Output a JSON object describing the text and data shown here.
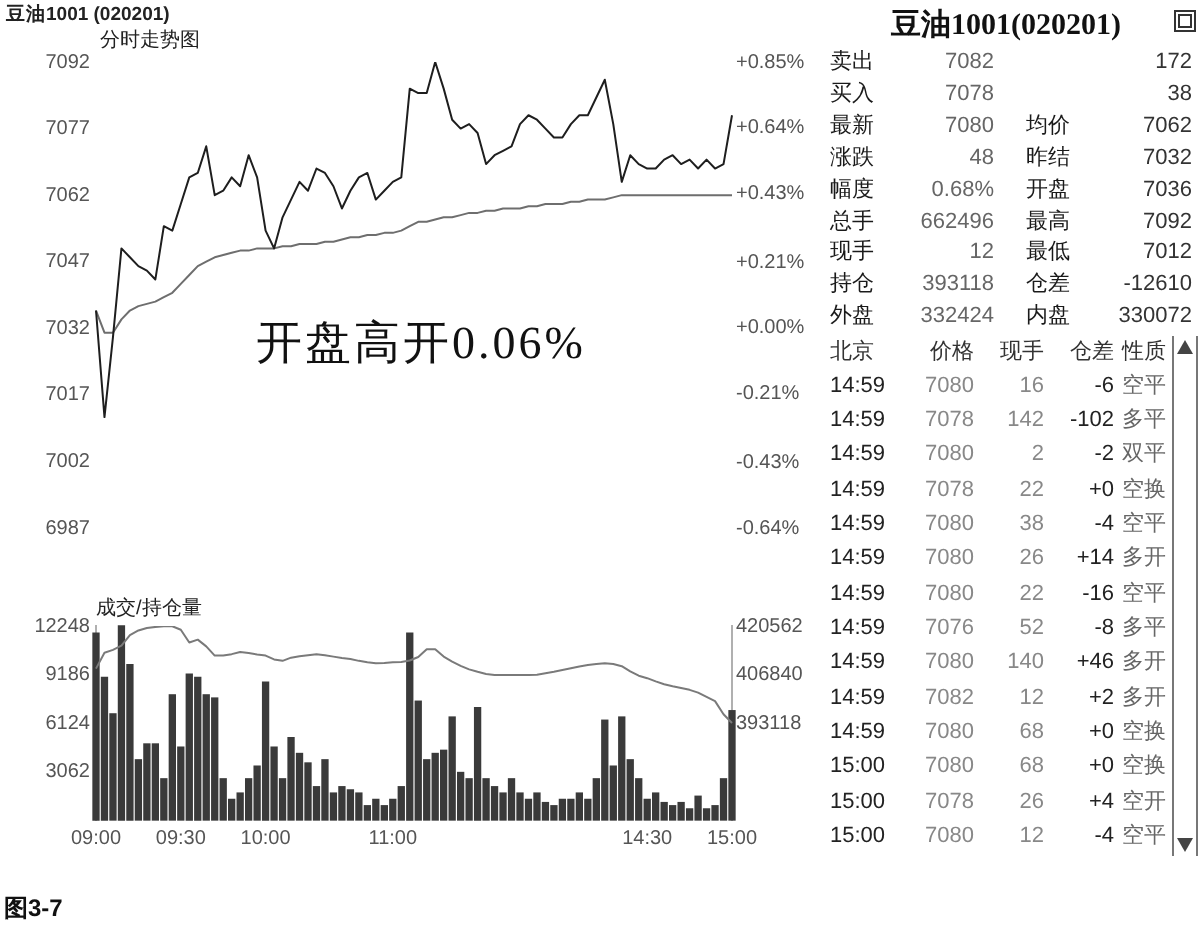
{
  "chart_data": [
    {
      "type": "line",
      "title": "豆油1001 (020201)",
      "subtitle": "分时走势图",
      "annotations": [
        "开盘高开0.06%"
      ],
      "categories": [
        null,
        null,
        null,
        null,
        null,
        null,
        null,
        null,
        null,
        null,
        null,
        null,
        null,
        null,
        null,
        null,
        null,
        null,
        null,
        null,
        null,
        null,
        null,
        null,
        null,
        null,
        null,
        null,
        null,
        null,
        null,
        null,
        null,
        null,
        null,
        null,
        null,
        null,
        null,
        null,
        null,
        null,
        null,
        null,
        null,
        null,
        null,
        null,
        null,
        null,
        null,
        null,
        null,
        null,
        null,
        null,
        null,
        null,
        null,
        null,
        null,
        null,
        null,
        null,
        null,
        null,
        null,
        null,
        null,
        null,
        null,
        null,
        null,
        null,
        null,
        null
      ],
      "ylim": [
        6987,
        7092
      ],
      "yticks": [
        6987,
        7002,
        7017,
        7032,
        7047,
        7062,
        7077,
        7092
      ],
      "y2lim": [
        -0.64,
        0.85
      ],
      "y2ticks": [
        {
          "value": -0.64,
          "label": "-0.64%"
        },
        {
          "value": -0.43,
          "label": "-0.43%"
        },
        {
          "value": -0.21,
          "label": "-0.21%"
        },
        {
          "value": 0,
          "label": "+0.00%"
        },
        {
          "value": 0.21,
          "label": "+0.21%"
        },
        {
          "value": 0.43,
          "label": "+0.43%"
        },
        {
          "value": 0.64,
          "label": "+0.64%"
        },
        {
          "value": 0.85,
          "label": "+0.85%"
        }
      ],
      "series": [
        {
          "type": "line",
          "color": "#1e1e1e",
          "values": [
            7036,
            7012,
            7030,
            7050,
            7048,
            7046,
            7045,
            7043,
            7055,
            7054,
            7060,
            7066,
            7067,
            7073,
            7062,
            7063,
            7066,
            7064,
            7071,
            7066,
            7054,
            7050,
            7057,
            7061,
            7065,
            7063,
            7068,
            7067,
            7064,
            7059,
            7063,
            7066,
            7067,
            7061,
            7063,
            7065,
            7066,
            7086,
            7085,
            7085,
            7092,
            7086,
            7079,
            7077,
            7078,
            7076,
            7069,
            7071,
            7072,
            7073,
            7078,
            7080,
            7079,
            7077,
            7075,
            7075,
            7078,
            7080,
            7080,
            7084,
            7088,
            7078,
            7065,
            7071,
            7069,
            7068,
            7068,
            7070,
            7071,
            7069,
            7070,
            7068,
            7070,
            7068,
            7069,
            7080
          ]
        },
        {
          "type": "line",
          "color": "#6e6e6e",
          "values": [
            7036,
            7031,
            7031,
            7034,
            7036,
            7037,
            7037.5,
            7038,
            7039,
            7040,
            7042,
            7044,
            7046,
            7047,
            7048,
            7048.5,
            7049,
            7049.5,
            7049.5,
            7050,
            7050,
            7050,
            7050.5,
            7050.5,
            7051,
            7051,
            7051,
            7051.5,
            7051.5,
            7052,
            7052.5,
            7052.5,
            7053,
            7053,
            7053.5,
            7053.5,
            7054,
            7055,
            7056,
            7056,
            7056.5,
            7057,
            7057,
            7057.5,
            7058,
            7058,
            7058.5,
            7058.5,
            7059,
            7059,
            7059,
            7059.5,
            7059.5,
            7060,
            7060,
            7060,
            7060.5,
            7060.5,
            7061,
            7061,
            7061,
            7061.5,
            7062,
            7062,
            7062,
            7062,
            7062,
            7062,
            7062,
            7062,
            7062,
            7062,
            7062,
            7062,
            7062,
            7062
          ]
        }
      ]
    },
    {
      "type": "bar",
      "title": "成交/持仓量",
      "annotations": [
        "图3-7"
      ],
      "categories": [
        "09:00",
        null,
        null,
        null,
        null,
        null,
        null,
        null,
        null,
        null,
        "09:30",
        null,
        null,
        null,
        null,
        null,
        null,
        null,
        null,
        null,
        "10:00",
        null,
        null,
        null,
        null,
        null,
        null,
        null,
        null,
        null,
        null,
        null,
        null,
        null,
        null,
        "11:00",
        null,
        null,
        null,
        null,
        null,
        null,
        null,
        null,
        null,
        null,
        null,
        null,
        null,
        null,
        null,
        null,
        null,
        null,
        null,
        null,
        null,
        null,
        null,
        null,
        null,
        null,
        null,
        null,
        null,
        "14:30",
        null,
        null,
        null,
        null,
        null,
        null,
        null,
        null,
        null,
        "15:00"
      ],
      "ylim": [
        0,
        12248
      ],
      "yticks": [
        3062,
        6124,
        9186,
        12248
      ],
      "y2lim": [
        365674,
        420562
      ],
      "y2ticks": [
        393118,
        406840,
        420562
      ],
      "series": [
        {
          "type": "bar",
          "color": "#3a3a3a",
          "values": [
            11800,
            9000,
            6700,
            12248,
            9800,
            3800,
            4800,
            4800,
            2600,
            7900,
            4600,
            9200,
            9000,
            7900,
            7700,
            2600,
            1300,
            1700,
            2600,
            3400,
            8700,
            4600,
            2600,
            5200,
            4200,
            3600,
            2100,
            3800,
            1700,
            2100,
            1900,
            1700,
            900,
            1300,
            900,
            1300,
            2100,
            11800,
            7500,
            3800,
            4200,
            4400,
            6500,
            3000,
            2600,
            7100,
            2600,
            2100,
            1700,
            2600,
            1700,
            1300,
            1700,
            1100,
            900,
            1300,
            1300,
            1700,
            1300,
            2600,
            6300,
            3400,
            6500,
            3800,
            2600,
            1300,
            1700,
            1100,
            900,
            1100,
            700,
            1500,
            700,
            900,
            2600,
            6900
          ]
        },
        {
          "type": "line",
          "axis": "y2",
          "color": "#7a7a7a",
          "values": [
            408500,
            413000,
            413800,
            415000,
            418000,
            419300,
            420000,
            420300,
            420500,
            420500,
            419500,
            415900,
            416700,
            414800,
            412200,
            412200,
            412600,
            413200,
            412900,
            412500,
            412200,
            411100,
            410700,
            411600,
            412000,
            412300,
            412600,
            412300,
            411900,
            411500,
            411200,
            410700,
            410300,
            410000,
            410100,
            410300,
            410400,
            410800,
            411800,
            414000,
            414000,
            411900,
            410500,
            409300,
            408300,
            407600,
            407000,
            406700,
            406700,
            406700,
            406700,
            406700,
            406800,
            407200,
            407600,
            408100,
            408600,
            409100,
            409500,
            409800,
            410000,
            409800,
            409200,
            407700,
            406500,
            405800,
            404900,
            404100,
            403500,
            403000,
            402500,
            401700,
            400500,
            399300,
            395600,
            393118
          ]
        }
      ]
    },
    {
      "type": "other",
      "title": "豆油1001(020201)",
      "annotations": [
        "卖出",
        "7082",
        "172",
        "买入",
        "7078",
        "38",
        "最新",
        "7080",
        "均价",
        "7062",
        "涨跌",
        "48",
        "昨结",
        "7032",
        "幅度",
        "0.68%",
        "开盘",
        "7036",
        "总手",
        "662496",
        "最高",
        "7092",
        "现手",
        "12",
        "最低",
        "7012",
        "持仓",
        "393118",
        "仓差",
        "-12610",
        "外盘",
        "332424",
        "内盘",
        "330072",
        "北京",
        "价格",
        "现手",
        "仓差",
        "性质",
        "14:59",
        "7080",
        "16",
        "-6",
        "空平",
        "14:59",
        "7078",
        "142",
        "-102",
        "多平",
        "14:59",
        "7080",
        "2",
        "-2",
        "双平",
        "14:59",
        "7078",
        "22",
        "+0",
        "空换",
        "14:59",
        "7080",
        "38",
        "-4",
        "空平",
        "14:59",
        "7080",
        "26",
        "+14",
        "多开",
        "14:59",
        "7080",
        "22",
        "-16",
        "空平",
        "14:59",
        "7076",
        "52",
        "-8",
        "多平",
        "14:59",
        "7080",
        "140",
        "+46",
        "多开",
        "14:59",
        "7082",
        "12",
        "+2",
        "多开",
        "14:59",
        "7080",
        "68",
        "+0",
        "空换",
        "15:00",
        "7080",
        "68",
        "+0",
        "空换",
        "15:00",
        "7078",
        "26",
        "+4",
        "空开",
        "15:00",
        "7080",
        "12",
        "-4",
        "空平"
      ]
    }
  ]
}
